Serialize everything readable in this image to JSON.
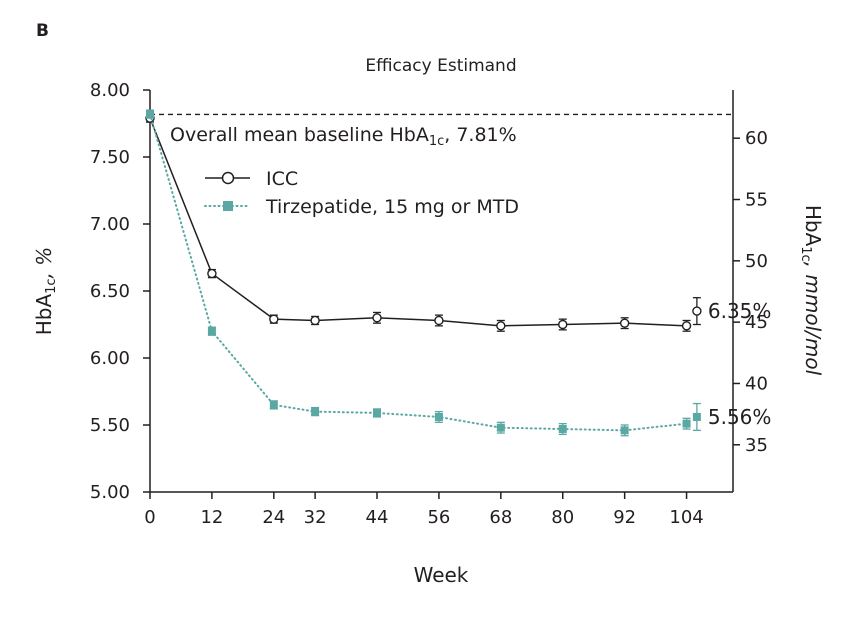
{
  "panel_label": "B",
  "chart_data": {
    "type": "line",
    "title": "Efficacy Estimand",
    "xlabel": "Week",
    "ylabel": "HbA1c, %",
    "ylabel_main": "HbA",
    "ylabel_sub": "1c",
    "ylabel_rest": ", %",
    "y2label": "HbA1c, mmol/mol",
    "y2label_main": "HbA",
    "y2label_sub": "1c",
    "y2label_rest": ", mmol/mol",
    "xlim": [
      0,
      113
    ],
    "ylim": [
      5.0,
      8.0
    ],
    "y2lim": [
      31.15,
      63.93
    ],
    "x_ticks": [
      "0",
      "12",
      "24",
      "32",
      "44",
      "56",
      "68",
      "80",
      "92",
      "104"
    ],
    "y_ticks": [
      "5.00",
      "5.50",
      "6.00",
      "6.50",
      "7.00",
      "7.50",
      "8.00"
    ],
    "y2_ticks": [
      "35",
      "40",
      "45",
      "50",
      "55",
      "60"
    ],
    "grid": false,
    "legend_position": "top-left",
    "baseline": {
      "value": 7.81,
      "text_pre": "Overall mean baseline HbA",
      "text_sub": "1c",
      "text_post": ", 7.81%"
    },
    "series": [
      {
        "name": "ICC",
        "color": "#231f20",
        "marker": "open-circle",
        "line": "solid",
        "x": [
          0,
          12,
          24,
          32,
          44,
          56,
          68,
          80,
          92,
          104
        ],
        "y": [
          7.79,
          6.63,
          6.29,
          6.28,
          6.3,
          6.28,
          6.24,
          6.25,
          6.26,
          6.24
        ],
        "err": [
          0.03,
          0.03,
          0.03,
          0.03,
          0.04,
          0.04,
          0.04,
          0.04,
          0.04,
          0.04
        ],
        "endpoint": {
          "x": 106,
          "y": 6.35,
          "err": 0.1,
          "label": "6.35%"
        }
      },
      {
        "name": "Tirzepatide, 15 mg or MTD",
        "color": "#5aa8a4",
        "marker": "filled-square",
        "line": "dotted",
        "x": [
          0,
          12,
          24,
          32,
          44,
          56,
          68,
          80,
          92,
          104
        ],
        "y": [
          7.82,
          6.2,
          5.65,
          5.6,
          5.59,
          5.56,
          5.48,
          5.47,
          5.46,
          5.51
        ],
        "err": [
          0.03,
          0.03,
          0.03,
          0.03,
          0.03,
          0.04,
          0.04,
          0.04,
          0.04,
          0.04
        ],
        "endpoint": {
          "x": 106,
          "y": 5.56,
          "err": 0.1,
          "label": "5.56%"
        }
      }
    ]
  }
}
